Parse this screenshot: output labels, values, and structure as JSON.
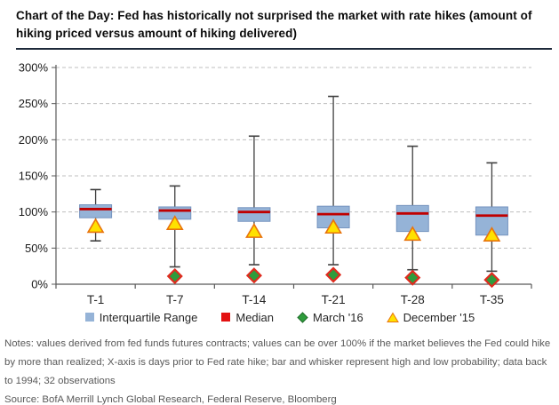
{
  "title": "Chart of the Day: Fed has historically not surprised the market with rate hikes (amount of hiking priced versus amount of hiking delivered)",
  "notes": "Notes: values derived from fed funds futures contracts; values can be over 100% if the market believes the Fed could hike by more than realized; X-axis is days prior to Fed rate hike; bar and whisker represent high and low probability; data back to 1994; 32 observations",
  "source": "Source: BofA Merrill Lynch Global Research, Federal Reserve, Bloomberg",
  "legend": {
    "position": "bottom",
    "items": [
      {
        "label": "Interquartile Range",
        "marker": "square",
        "color": "#95B3D7"
      },
      {
        "label": "Median",
        "marker": "square",
        "color": "#E31212"
      },
      {
        "label": "March '16",
        "marker": "diamond",
        "color": "#2E9C3C"
      },
      {
        "label": "December '15",
        "marker": "triangle",
        "color": "#FFE100"
      }
    ]
  },
  "colors": {
    "box_fill": "#95B3D7",
    "box_border": "#7594BF",
    "median": "#C00000",
    "whisker": "#404040",
    "dec15_fill": "#FFE100",
    "dec15_border": "#E8730C",
    "mar16_fill": "#2E9C3C",
    "mar16_border": "#DF2B1E",
    "grid": "#BFBFBF",
    "axis": "#595959",
    "tick_label": "#1a1a1a"
  },
  "chart_data": {
    "type": "boxplot",
    "categories": [
      "T-1",
      "T-7",
      "T-14",
      "T-21",
      "T-28",
      "T-35"
    ],
    "series": [
      {
        "name": "high_whisker",
        "values": [
          131,
          136,
          205,
          260,
          191,
          168
        ]
      },
      {
        "name": "q3_box_top",
        "values": [
          110,
          107,
          106,
          108,
          109,
          107
        ]
      },
      {
        "name": "median",
        "values": [
          104,
          102,
          100,
          97,
          98,
          95
        ]
      },
      {
        "name": "q1_box_bottom",
        "values": [
          92,
          90,
          87,
          78,
          73,
          68
        ]
      },
      {
        "name": "low_whisker",
        "values": [
          60,
          24,
          27,
          27,
          20,
          18
        ]
      },
      {
        "name": "december_15",
        "values": [
          80,
          84,
          73,
          79,
          69,
          68
        ]
      },
      {
        "name": "march_16",
        "values": [
          null,
          11,
          12,
          13,
          9,
          6
        ]
      }
    ],
    "xlabel": "",
    "ylabel": "",
    "ylim": [
      0,
      300
    ],
    "ytick_step": 50,
    "yticks": [
      "0%",
      "50%",
      "100%",
      "150%",
      "200%",
      "250%",
      "300%"
    ],
    "grid": "horizontal-dashed"
  }
}
